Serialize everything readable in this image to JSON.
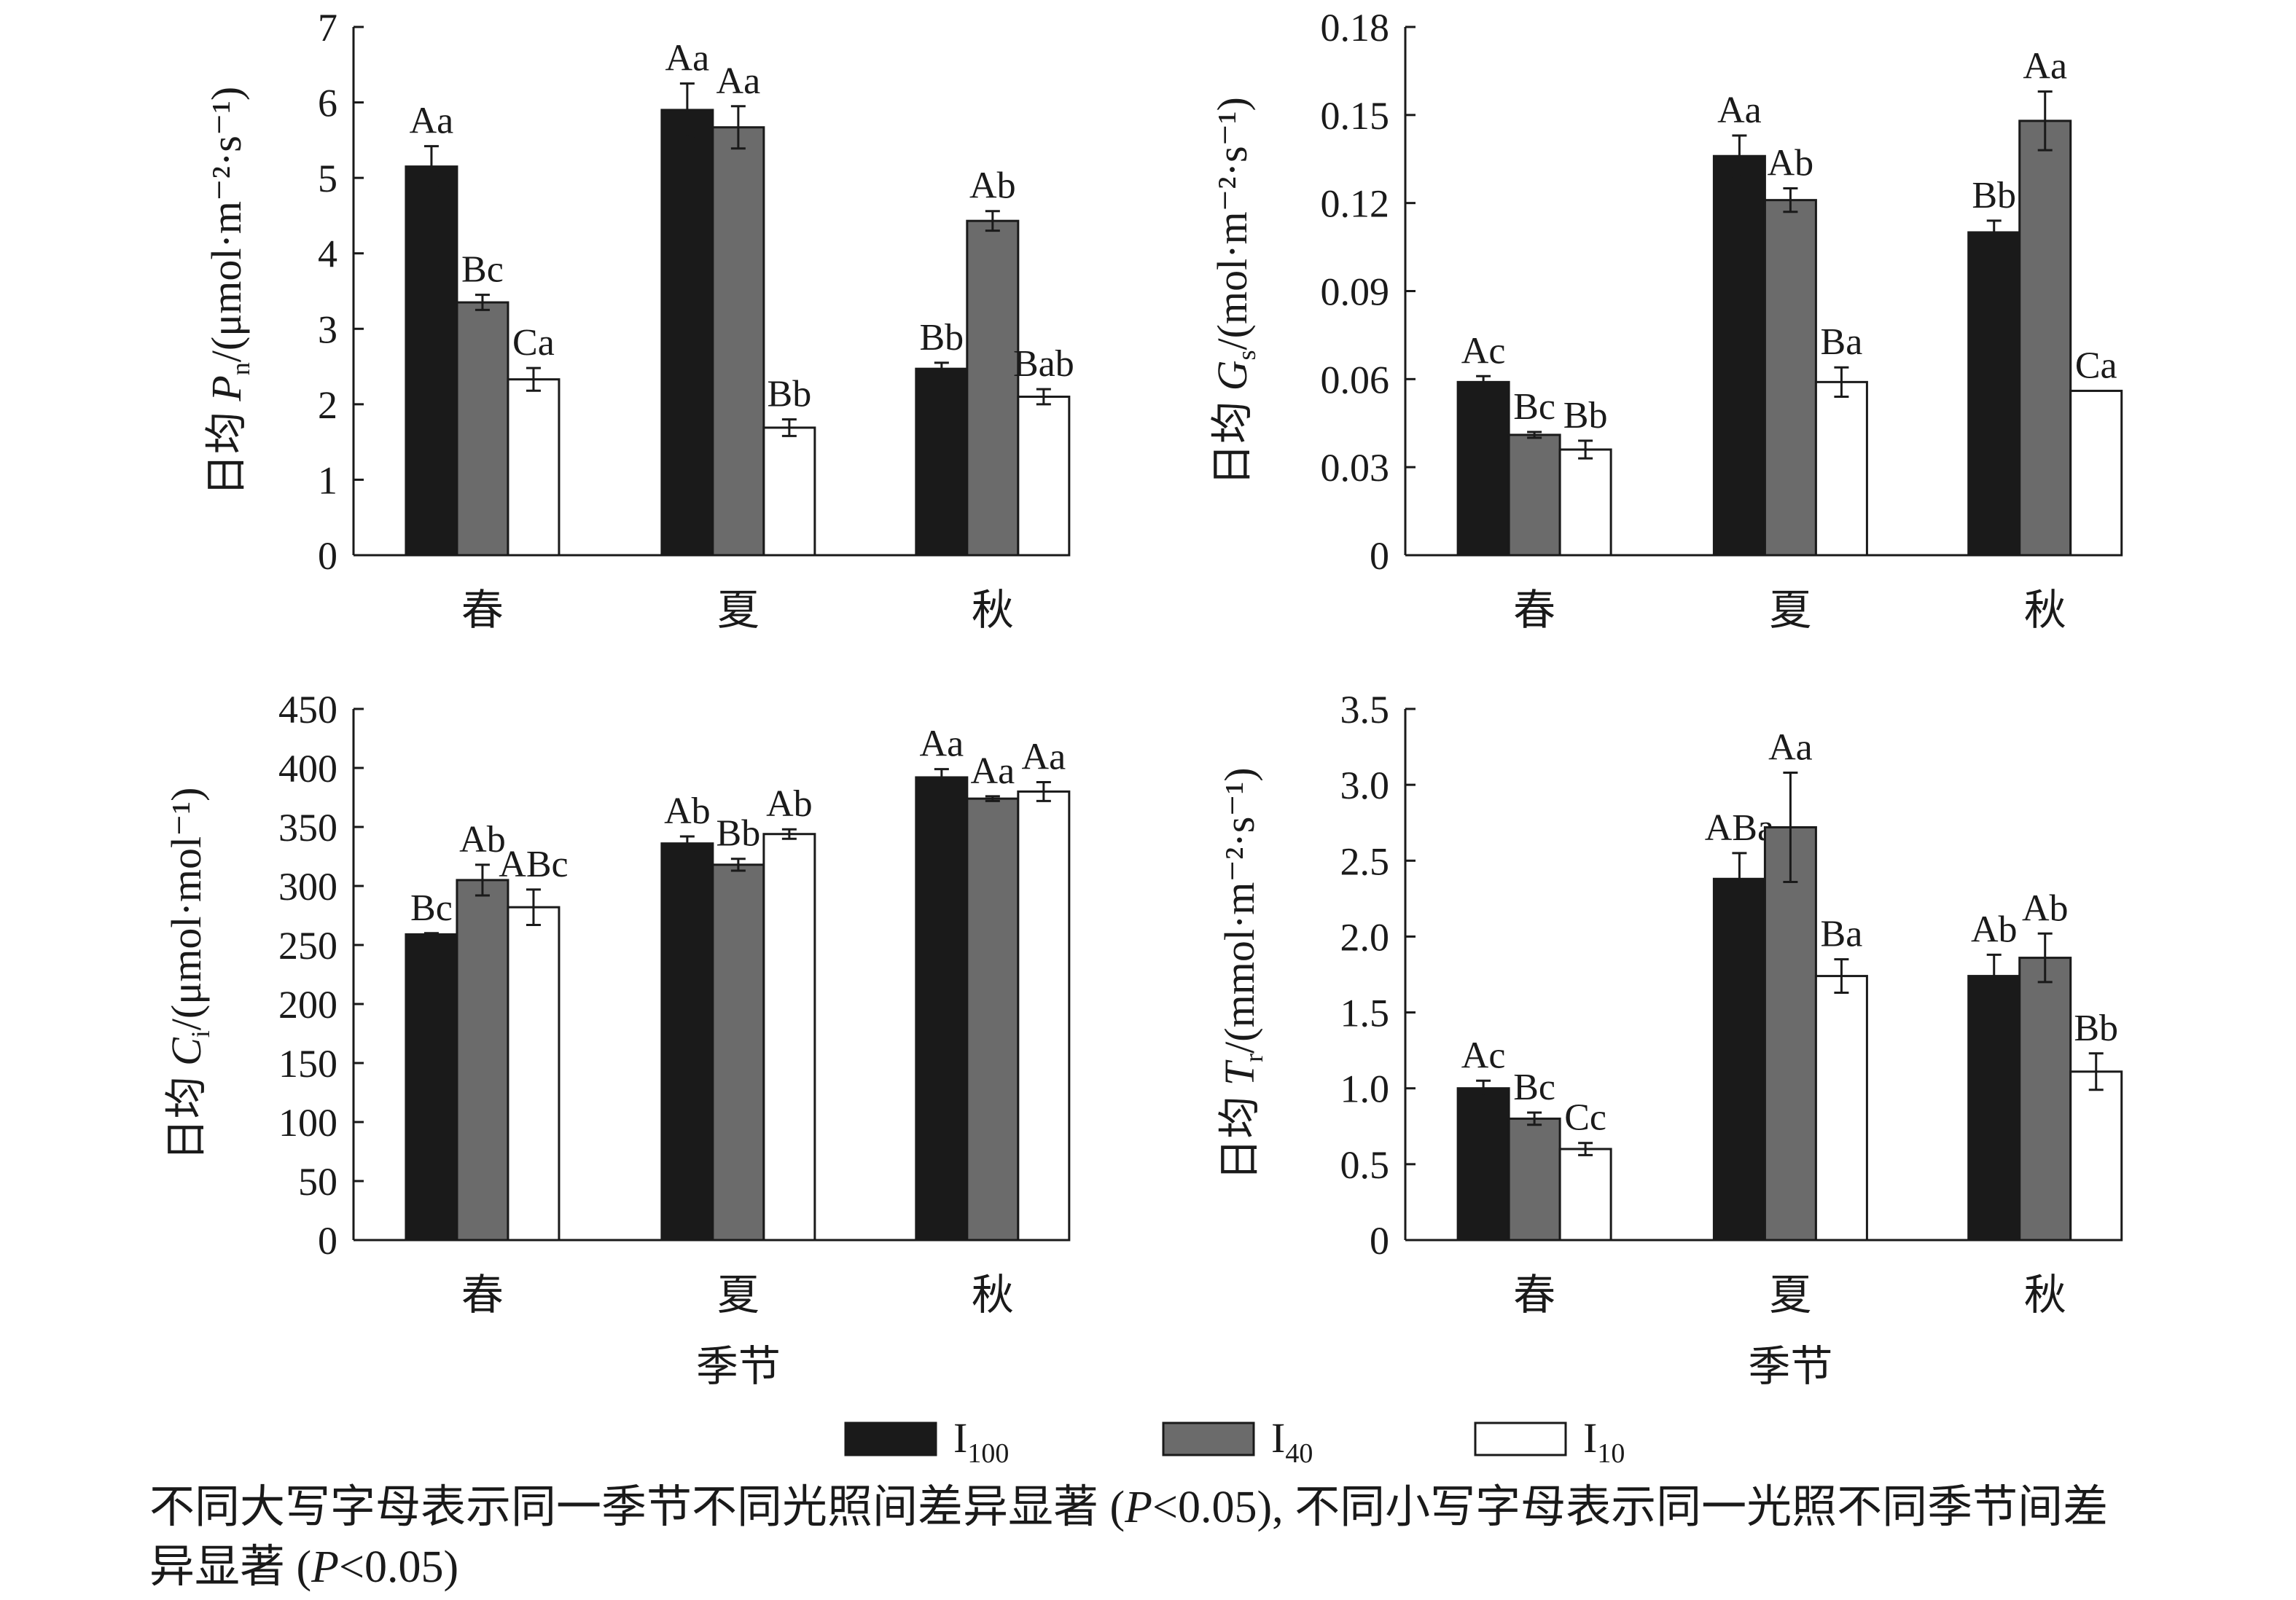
{
  "legend": [
    {
      "base": "I",
      "sub": "100",
      "fill": "#1a1a1a"
    },
    {
      "base": "I",
      "sub": "40",
      "fill": "#6b6b6b"
    },
    {
      "base": "I",
      "sub": "10",
      "fill": "#ffffff"
    }
  ],
  "caption": {
    "line1_a": "不同大写字母表示同一季节不同光照间差异显著 (",
    "p": "P",
    "line1_b": "<0.05), 不同小写字母表示同一光照不同季节间差",
    "line2_a": "异显著 (",
    "line2_b": "<0.05)"
  },
  "chart_data": [
    {
      "type": "bar",
      "ylabel": {
        "prefix": "日均 ",
        "var": "P",
        "sub": "n",
        "unit": "/(μmol·m⁻²·s⁻¹)"
      },
      "xlabel": "",
      "categories": [
        "春",
        "夏",
        "秋"
      ],
      "ylim": [
        0,
        7
      ],
      "yticks": [
        "0",
        "1",
        "2",
        "3",
        "4",
        "5",
        "6",
        "7"
      ],
      "series": [
        {
          "name": "I100",
          "values": [
            5.15,
            5.9,
            2.47
          ],
          "err": [
            0.27,
            0.35,
            0.08
          ],
          "labels": [
            "Aa",
            "Aa",
            "Bb"
          ]
        },
        {
          "name": "I40",
          "values": [
            3.35,
            5.67,
            4.43
          ],
          "err": [
            0.1,
            0.28,
            0.13
          ],
          "labels": [
            "Bc",
            "Aa",
            "Ab"
          ]
        },
        {
          "name": "I10",
          "values": [
            2.33,
            1.69,
            2.1
          ],
          "err": [
            0.15,
            0.11,
            0.1
          ],
          "labels": [
            "Ca",
            "Bb",
            "Bab"
          ]
        }
      ]
    },
    {
      "type": "bar",
      "ylabel": {
        "prefix": "日均 ",
        "var": "G",
        "sub": "s",
        "unit": "/(mol·m⁻²·s⁻¹)"
      },
      "xlabel": "",
      "categories": [
        "春",
        "夏",
        "秋"
      ],
      "ylim": [
        0,
        0.18
      ],
      "yticks": [
        "0",
        "0.03",
        "0.06",
        "0.09",
        "0.12",
        "0.15",
        "0.18"
      ],
      "series": [
        {
          "name": "I100",
          "values": [
            0.059,
            0.136,
            0.11
          ],
          "err": [
            0.002,
            0.007,
            0.004
          ],
          "labels": [
            "Ac",
            "Aa",
            "Bb"
          ]
        },
        {
          "name": "I40",
          "values": [
            0.041,
            0.121,
            0.148
          ],
          "err": [
            0.001,
            0.004,
            0.01
          ],
          "labels": [
            "Bc",
            "Ab",
            "Aa"
          ]
        },
        {
          "name": "I10",
          "values": [
            0.036,
            0.059,
            0.056
          ],
          "err": [
            0.003,
            0.005,
            0.0
          ],
          "labels": [
            "Bb",
            "Ba",
            "Ca"
          ]
        }
      ]
    },
    {
      "type": "bar",
      "ylabel": {
        "prefix": "日均 ",
        "var": "C",
        "sub": "i",
        "unit": "/(μmol·mol⁻¹)"
      },
      "xlabel": "季节",
      "categories": [
        "春",
        "夏",
        "秋"
      ],
      "ylim": [
        0,
        450
      ],
      "yticks": [
        "0",
        "50",
        "100",
        "150",
        "200",
        "250",
        "300",
        "350",
        "400",
        "450"
      ],
      "series": [
        {
          "name": "I100",
          "values": [
            259,
            336,
            392
          ],
          "err": [
            1,
            6,
            7
          ],
          "labels": [
            "Bc",
            "Ab",
            "Aa"
          ]
        },
        {
          "name": "I40",
          "values": [
            305,
            318,
            374
          ],
          "err": [
            13,
            5,
            2
          ],
          "labels": [
            "Ab",
            "Bb",
            "Aa"
          ]
        },
        {
          "name": "I10",
          "values": [
            282,
            344,
            380
          ],
          "err": [
            15,
            4,
            8
          ],
          "labels": [
            "ABc",
            "Ab",
            "Aa"
          ]
        }
      ]
    },
    {
      "type": "bar",
      "ylabel": {
        "prefix": "日均 ",
        "var": "T",
        "sub": "r",
        "unit": "/(mmol·m⁻²·s⁻¹)"
      },
      "xlabel": "季节",
      "categories": [
        "春",
        "夏",
        "秋"
      ],
      "ylim": [
        0,
        3.5
      ],
      "yticks": [
        "0",
        "0.5",
        "1.0",
        "1.5",
        "2.0",
        "2.5",
        "3.0",
        "3.5"
      ],
      "series": [
        {
          "name": "I100",
          "values": [
            1.0,
            2.38,
            1.74
          ],
          "err": [
            0.05,
            0.17,
            0.14
          ],
          "labels": [
            "Ac",
            "ABa",
            "Ab"
          ]
        },
        {
          "name": "I40",
          "values": [
            0.8,
            2.72,
            1.86
          ],
          "err": [
            0.04,
            0.36,
            0.16
          ],
          "labels": [
            "Bc",
            "Aa",
            "Ab"
          ]
        },
        {
          "name": "I10",
          "values": [
            0.6,
            1.74,
            1.11
          ],
          "err": [
            0.04,
            0.11,
            0.12
          ],
          "labels": [
            "Cc",
            "Ba",
            "Bb"
          ]
        }
      ]
    }
  ]
}
